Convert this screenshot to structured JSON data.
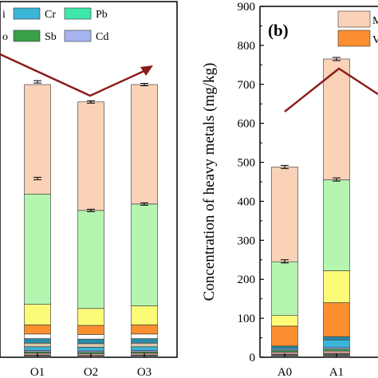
{
  "chart_data": [
    {
      "panel": "",
      "type": "bar",
      "stacked": true,
      "categories": [
        "O1",
        "O2",
        "O3"
      ],
      "series": [
        {
          "name": "",
          "color": "#5a5a5a",
          "values": [
            5,
            4,
            5
          ]
        },
        {
          "name": "",
          "color": "#e0a0a0",
          "values": [
            4,
            4,
            4
          ]
        },
        {
          "name": "Sb",
          "color": "#3aa04a",
          "values": [
            3,
            3,
            3
          ]
        },
        {
          "name": "Cd",
          "color": "#a8b4f0",
          "values": [
            3,
            3,
            3
          ]
        },
        {
          "name": "Cr",
          "color": "#3bb5d8",
          "values": [
            8,
            8,
            8
          ]
        },
        {
          "name": "",
          "color": "#d8c8a8",
          "values": [
            8,
            8,
            8
          ]
        },
        {
          "name": "",
          "color": "#2a8ca8",
          "values": [
            10,
            10,
            10
          ]
        },
        {
          "name": "",
          "color": "#ffffff",
          "values": [
            10,
            10,
            10
          ]
        },
        {
          "name": "",
          "color": "#fb8f30",
          "values": [
            20,
            20,
            20
          ]
        },
        {
          "name": "",
          "color": "#fbfb78",
          "values": [
            45,
            37,
            42
          ]
        },
        {
          "name": "",
          "color": "#b5f5b0",
          "values": [
            242,
            215,
            223
          ]
        },
        {
          "name": "",
          "color": "#fad2b8",
          "values": [
            240,
            238,
            262
          ]
        }
      ],
      "error_tops": [
        604,
        560,
        598
      ],
      "error_mid": [
        392,
        322,
        336
      ],
      "legend_labels": [
        "i",
        "Cr",
        "Pb",
        "o",
        "Sb",
        "Cd"
      ],
      "xlabel": "",
      "ylabel": "",
      "ylim": [
        0,
        780
      ]
    },
    {
      "panel": "(b)",
      "type": "bar",
      "stacked": true,
      "categories": [
        "A0",
        "A1"
      ],
      "series": [
        {
          "name": "",
          "color": "#5a5a5a",
          "values": [
            8,
            10
          ]
        },
        {
          "name": "",
          "color": "#e0a0a0",
          "values": [
            5,
            6
          ]
        },
        {
          "name": "",
          "color": "#3aa04a",
          "values": [
            4,
            5
          ]
        },
        {
          "name": "",
          "color": "#a8b4f0",
          "values": [
            3,
            4
          ]
        },
        {
          "name": "",
          "color": "#3bb5d8",
          "values": [
            4,
            20
          ]
        },
        {
          "name": "",
          "color": "#2a8ca8",
          "values": [
            5,
            8
          ]
        },
        {
          "name": "V",
          "color": "#fb8f30",
          "values": [
            51,
            87
          ]
        },
        {
          "name": "",
          "color": "#fbfb78",
          "values": [
            27,
            82
          ]
        },
        {
          "name": "",
          "color": "#b5f5b0",
          "values": [
            138,
            233
          ]
        },
        {
          "name": "M",
          "color": "#fad2b8",
          "values": [
            243,
            310
          ]
        }
      ],
      "error_tops": [
        488,
        765
      ],
      "error_mid": [
        246,
        456
      ],
      "legend_labels": [
        "M",
        "V"
      ],
      "xlabel": "",
      "ylabel": "Concentration of heavy metals (mg/kg)",
      "yticks": [
        0,
        100,
        200,
        300,
        400,
        500,
        600,
        700,
        800,
        900
      ],
      "ylim": [
        0,
        900
      ]
    }
  ],
  "trend_color": "#8b1a1a"
}
